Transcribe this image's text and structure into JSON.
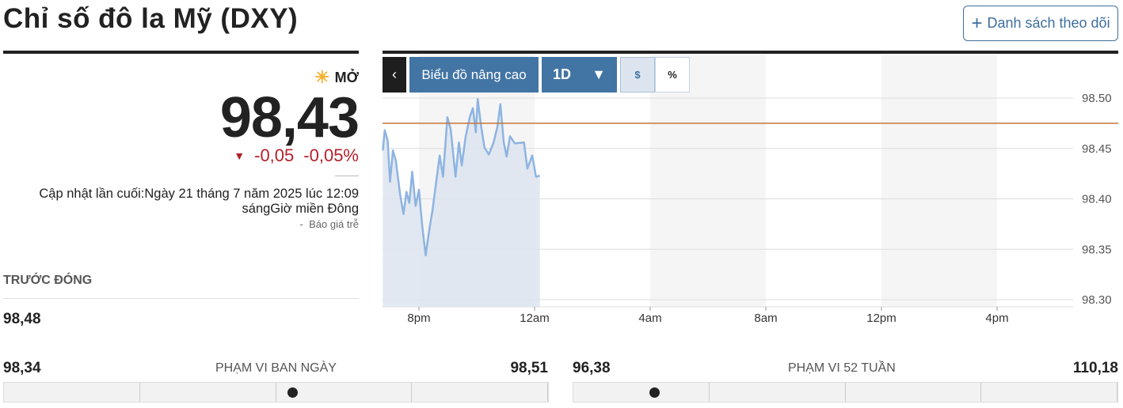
{
  "header": {
    "title": "Chỉ số đô la Mỹ (DXY)",
    "watchlist_button": "Danh sách theo dõi",
    "watchlist_icon": "plus-icon"
  },
  "quote": {
    "status": "MỞ",
    "status_icon": "sun-icon",
    "price": "98,43",
    "change": "-0,05",
    "change_percent": "-0,05%",
    "change_color": "#b3202a",
    "updated_line1": "Cập nhật lần cuối:Ngày 21 tháng 7 năm 2025 lúc 12:09",
    "updated_line2": "sángGiờ miền Đông",
    "delay_dash": "-",
    "delay": "Báo giá trễ",
    "prev_close_label": "TRƯỚC ĐÓNG",
    "prev_close": "98,48"
  },
  "toolbar": {
    "back_icon": "chevron-left-icon",
    "advanced_chart": "Biểu đồ nâng cao",
    "period": "1D",
    "period_icon": "caret-down-icon",
    "dollar": "$",
    "percent": "%",
    "selected": "$"
  },
  "ranges": {
    "day": {
      "label": "PHẠM VI BAN NGÀY",
      "low": "98,34",
      "high": "98,51",
      "current": 98.43,
      "low_value": 98.34,
      "high_value": 98.51
    },
    "week52": {
      "label": "PHẠM VI 52 TUẦN",
      "low": "96,38",
      "high": "110,18",
      "current": 98.43,
      "low_value": 96.38,
      "high_value": 110.18
    }
  },
  "chart_data": {
    "type": "area",
    "title": "",
    "xlabel": "",
    "ylabel": "",
    "ylim": [
      98.3,
      98.5
    ],
    "yticks": [
      "98.50",
      "98.45",
      "98.40",
      "98.35",
      "98.30"
    ],
    "xticks": [
      "8pm",
      "12am",
      "4am",
      "8am",
      "12pm",
      "4pm"
    ],
    "xrange": [
      "2025-07-20T18:45",
      "2025-07-21T18:50"
    ],
    "grid": true,
    "line_color": "#8db4e2",
    "fill_color": "#dde4ee",
    "prev_close_color": "#c8743c",
    "previous_close": 98.475,
    "series": [
      {
        "x": [
          "2025-07-20T18:45",
          "2025-07-20T18:49",
          "2025-07-20T18:55",
          "2025-07-20T19:00",
          "2025-07-20T19:06",
          "2025-07-20T19:12",
          "2025-07-20T19:21",
          "2025-07-20T19:28",
          "2025-07-20T19:34",
          "2025-07-20T19:40",
          "2025-07-20T19:46",
          "2025-07-20T19:53",
          "2025-07-20T20:00",
          "2025-07-20T20:07",
          "2025-07-20T20:14",
          "2025-07-20T20:21",
          "2025-07-20T20:28",
          "2025-07-20T20:35",
          "2025-07-20T20:43",
          "2025-07-20T20:50",
          "2025-07-20T20:59",
          "2025-07-20T21:06",
          "2025-07-20T21:16",
          "2025-07-20T21:23",
          "2025-07-20T21:29",
          "2025-07-20T21:37",
          "2025-07-20T21:46",
          "2025-07-20T21:52",
          "2025-07-20T21:58",
          "2025-07-20T22:02",
          "2025-07-20T22:09",
          "2025-07-20T22:16",
          "2025-07-20T22:25",
          "2025-07-20T22:35",
          "2025-07-20T22:43",
          "2025-07-20T22:49",
          "2025-07-20T22:56",
          "2025-07-20T23:02",
          "2025-07-20T23:09",
          "2025-07-20T23:19",
          "2025-07-20T23:38",
          "2025-07-20T23:45",
          "2025-07-20T23:55",
          "2025-07-21T00:03",
          "2025-07-21T00:11"
        ],
        "y": [
          98.448,
          98.468,
          98.458,
          98.417,
          98.448,
          98.438,
          98.404,
          98.385,
          98.407,
          98.396,
          98.427,
          98.393,
          98.409,
          98.372,
          98.344,
          98.368,
          98.388,
          98.414,
          98.443,
          98.422,
          98.481,
          98.469,
          98.422,
          98.456,
          98.433,
          98.462,
          98.482,
          98.49,
          98.466,
          98.499,
          98.472,
          98.451,
          98.444,
          98.456,
          98.472,
          98.494,
          98.456,
          98.442,
          98.462,
          98.455,
          98.456,
          98.43,
          98.443,
          98.422,
          98.423
        ]
      }
    ]
  }
}
